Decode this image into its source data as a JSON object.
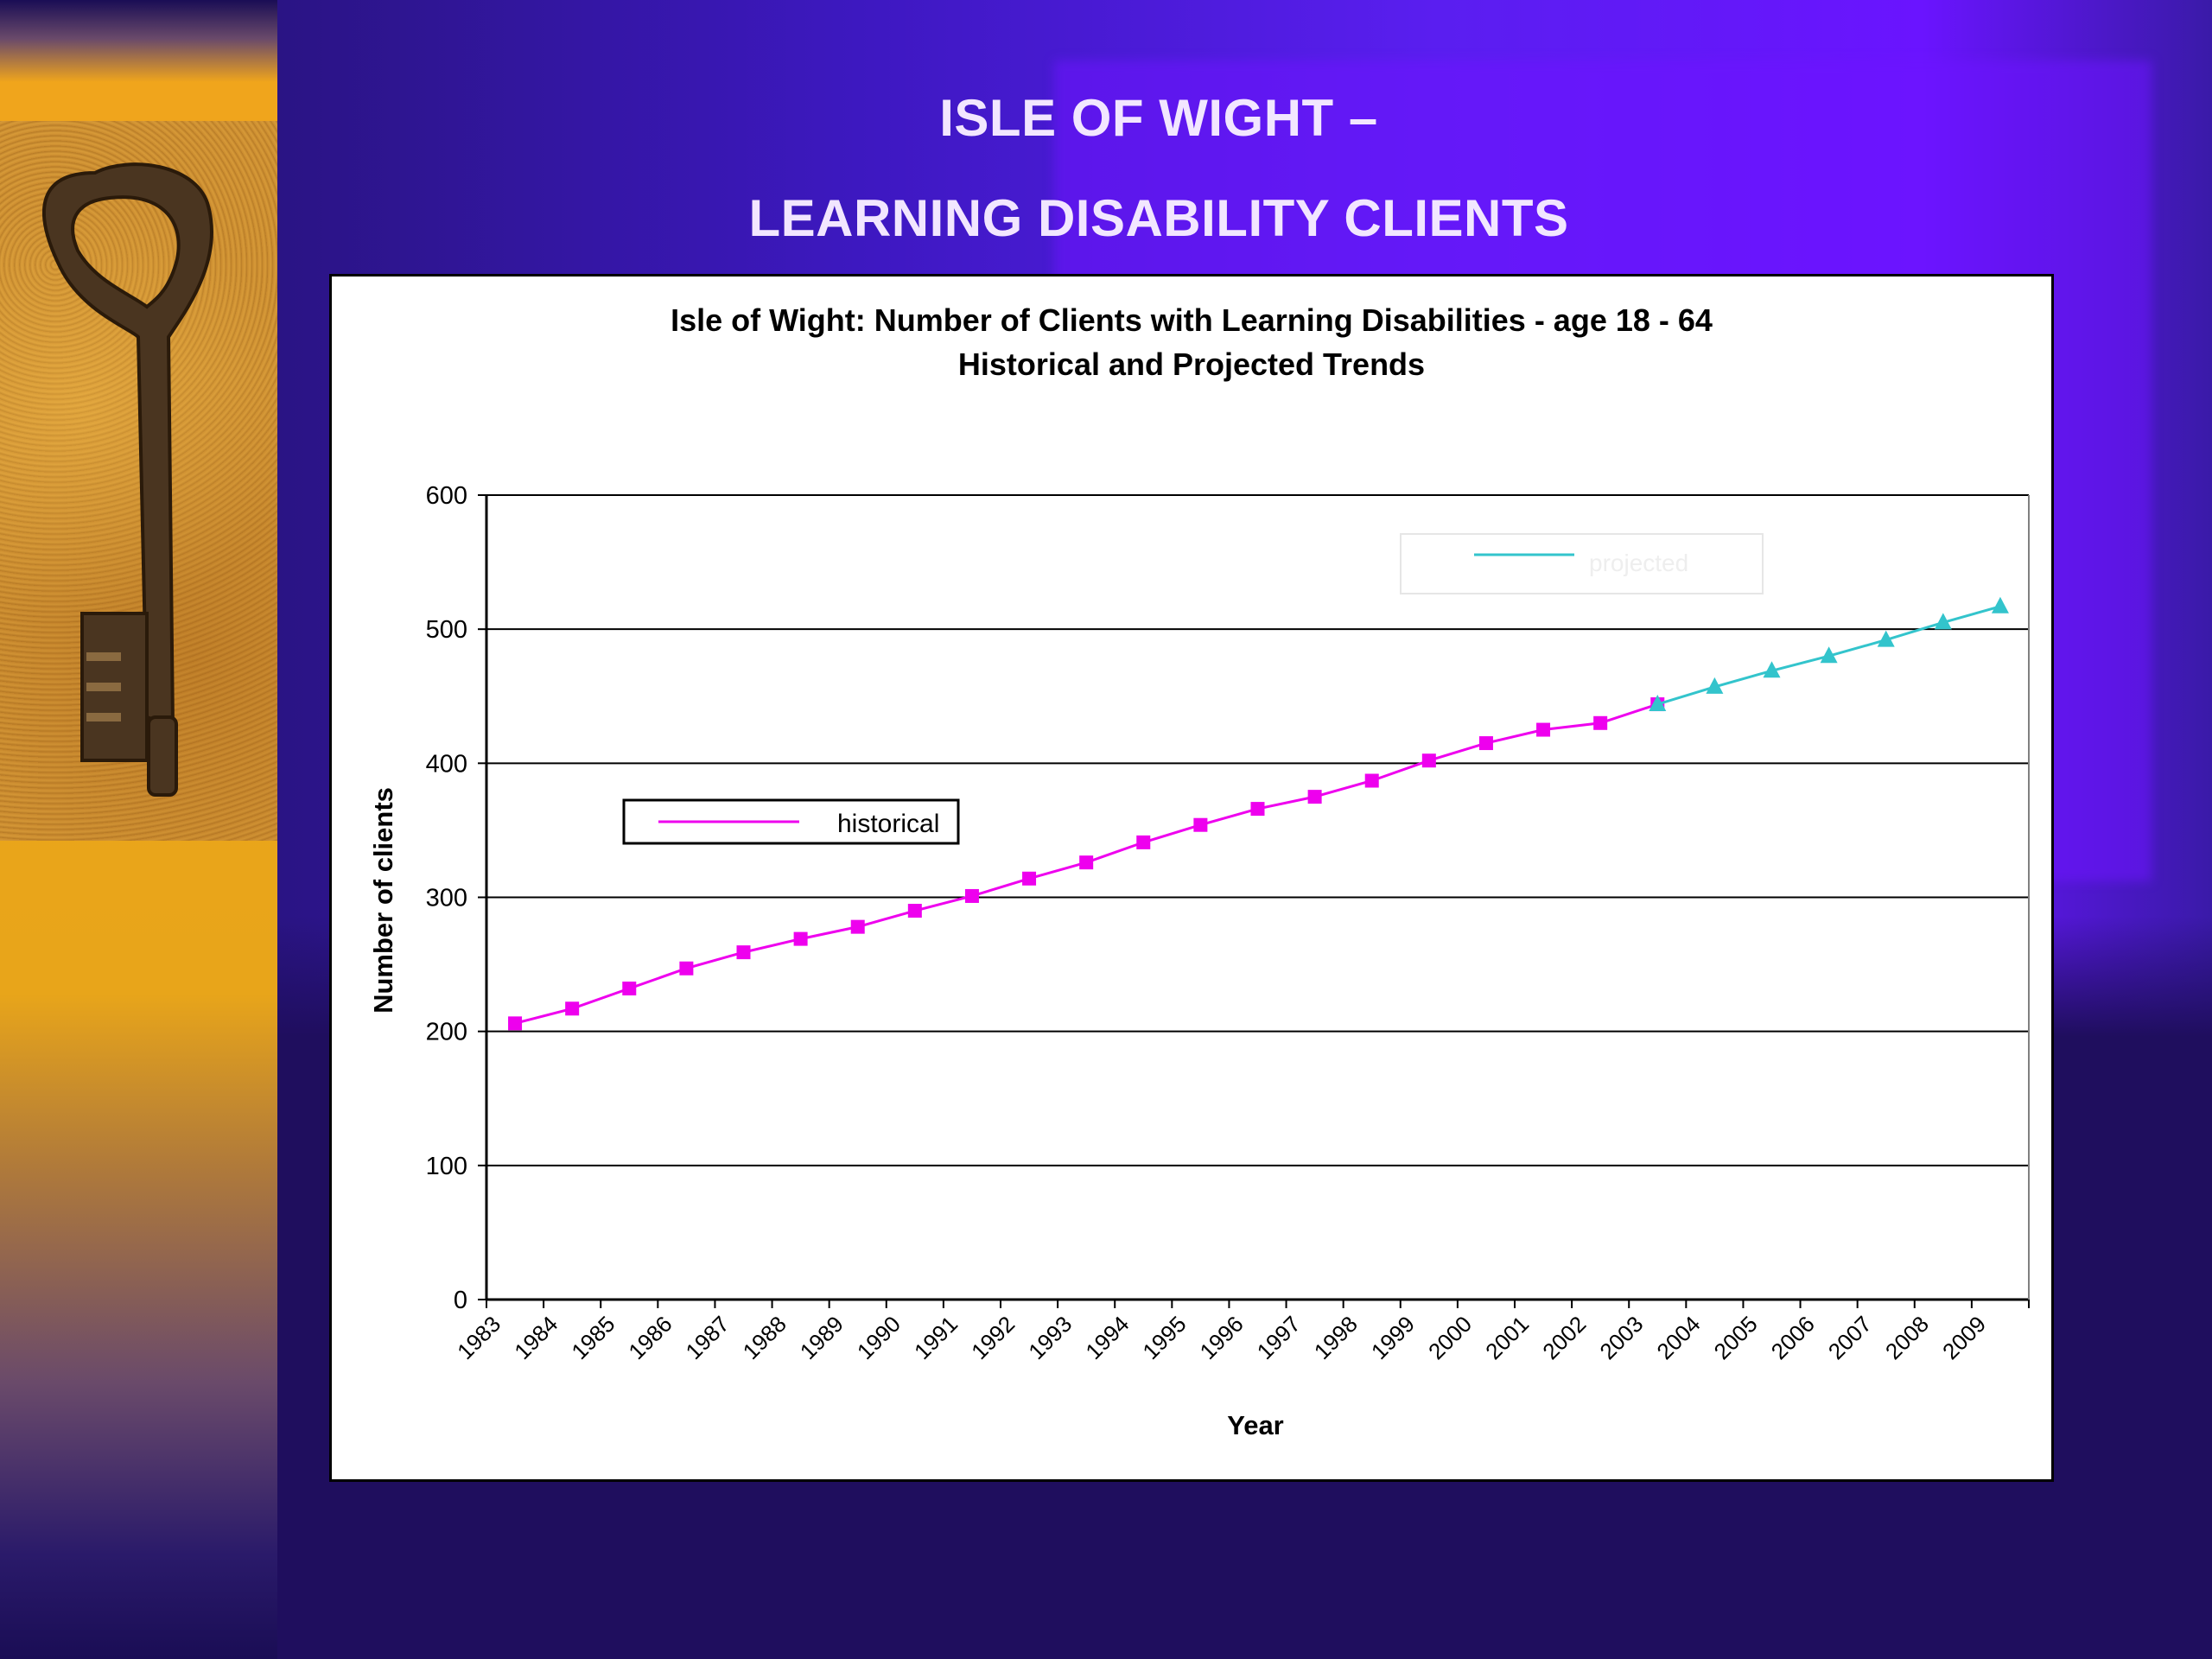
{
  "slide": {
    "title_line1": "ISLE OF WIGHT –",
    "title_line2": "LEARNING DISABILITY CLIENTS"
  },
  "sidebar": {
    "image_icon": "antique-key-icon"
  },
  "colors": {
    "historical": "#ee00ee",
    "projected": "#33c4cc",
    "gridline": "#000000"
  },
  "chart_data": {
    "type": "line",
    "title": "Isle of Wight:  Number of Clients with Learning Disabilities - age 18 - 64",
    "subtitle": "Historical and Projected Trends",
    "xlabel": "Year",
    "ylabel": "Number of clients",
    "categories": [
      "1983",
      "1984",
      "1985",
      "1986",
      "1987",
      "1988",
      "1989",
      "1990",
      "1991",
      "1992",
      "1993",
      "1994",
      "1995",
      "1996",
      "1997",
      "1998",
      "1999",
      "2000",
      "2001",
      "2002",
      "2003",
      "2004",
      "2005",
      "2006",
      "2007",
      "2008",
      "2009"
    ],
    "ylim": [
      0,
      600
    ],
    "yticks": [
      0,
      100,
      200,
      300,
      400,
      500,
      600
    ],
    "grid": true,
    "series": [
      {
        "name": "historical",
        "marker": "square",
        "values": [
          206,
          217,
          232,
          247,
          259,
          269,
          278,
          290,
          301,
          314,
          326,
          341,
          354,
          366,
          375,
          387,
          402,
          415,
          425,
          430,
          444,
          null,
          null,
          null,
          null,
          null,
          null
        ],
        "legend_position": "middle-left"
      },
      {
        "name": "projected",
        "marker": "triangle",
        "values": [
          null,
          null,
          null,
          null,
          null,
          null,
          null,
          null,
          null,
          null,
          null,
          null,
          null,
          null,
          null,
          null,
          null,
          null,
          null,
          null,
          444,
          457,
          469,
          480,
          492,
          505,
          517
        ],
        "legend_position": "top-right"
      }
    ]
  }
}
